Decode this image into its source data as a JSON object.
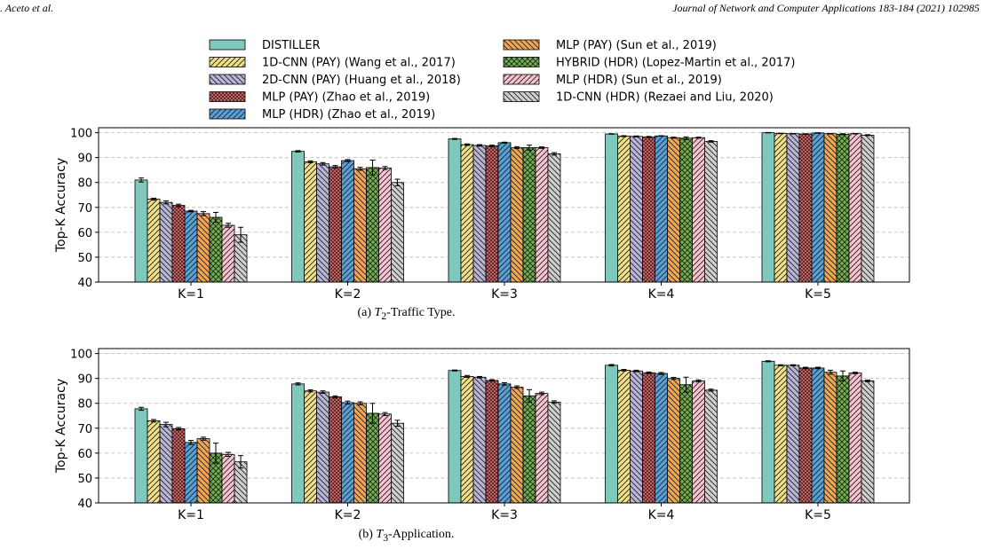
{
  "header": {
    "left": ". Aceto et al.",
    "right": "Journal of Network and Computer Applications 183-184 (2021) 102985"
  },
  "legend": [
    {
      "label": "DISTILLER",
      "color": "#7ec8be",
      "pattern": "none"
    },
    {
      "label": "1D-CNN (PAY) (Wang et al., 2017)",
      "color": "#f0e08a",
      "pattern": "diag"
    },
    {
      "label": "2D-CNN (PAY) (Huang et al., 2018)",
      "color": "#b9b5d6",
      "pattern": "diag-back"
    },
    {
      "label": "MLP (PAY) (Zhao et al., 2019)",
      "color": "#7a2323",
      "pattern": "dots"
    },
    {
      "label": "MLP (HDR) (Zhao et al., 2019)",
      "color": "#5aa0d8",
      "pattern": "diag"
    },
    {
      "label": "MLP (PAY) (Sun et al., 2019)",
      "color": "#f6a54a",
      "pattern": "diag-back"
    },
    {
      "label": "HYBRID (HDR) (Lopez-Martin et al., 2017)",
      "color": "#6fb24a",
      "pattern": "cross"
    },
    {
      "label": "MLP (HDR) (Sun et al., 2019)",
      "color": "#f7c3cf",
      "pattern": "diag"
    },
    {
      "label": "1D-CNN (HDR) (Rezaei and Liu, 2020)",
      "color": "#cfcfcf",
      "pattern": "diag-back"
    }
  ],
  "captions": {
    "a_prefix": "(a) ",
    "a_symbol": "T",
    "a_sub": "2",
    "a_text": "-Traffic Type.",
    "b_prefix": "(b) ",
    "b_symbol": "T",
    "b_sub": "3",
    "b_text": "-Application."
  },
  "chart_data": [
    {
      "type": "bar",
      "ylabel": "Top-K Accuracy",
      "ylim": [
        40,
        102
      ],
      "yticks": [
        40,
        50,
        60,
        70,
        80,
        90,
        100
      ],
      "grid": "horizontal dashed",
      "categories": [
        "K=1",
        "K=2",
        "K=3",
        "K=4",
        "K=5"
      ],
      "series": [
        {
          "name": "DISTILLER",
          "values": [
            81,
            92.5,
            97.5,
            99.5,
            100
          ],
          "err": [
            0.8,
            0.3,
            0.2,
            0.1,
            0.1
          ]
        },
        {
          "name": "1D-CNN (PAY) (Wang et al., 2017)",
          "values": [
            73.3,
            88.3,
            95.2,
            98.6,
            99.7
          ],
          "err": [
            0.4,
            0.4,
            0.3,
            0.2,
            0.1
          ]
        },
        {
          "name": "2D-CNN (PAY) (Huang et al., 2018)",
          "values": [
            72,
            87.5,
            94.9,
            98.5,
            99.6
          ],
          "err": [
            0.6,
            0.5,
            0.3,
            0.2,
            0.1
          ]
        },
        {
          "name": "MLP (PAY) (Zhao et al., 2019)",
          "values": [
            70.8,
            86.3,
            94.7,
            98.3,
            99.5
          ],
          "err": [
            0.5,
            0.5,
            0.3,
            0.2,
            0.1
          ]
        },
        {
          "name": "MLP (HDR) (Zhao et al., 2019)",
          "values": [
            68.5,
            88.8,
            96,
            98.7,
            99.9
          ],
          "err": [
            0.3,
            0.4,
            0.2,
            0.1,
            0.1
          ]
        },
        {
          "name": "MLP (PAY) (Sun et al., 2019)",
          "values": [
            67.5,
            85.5,
            94,
            98,
            99.6
          ],
          "err": [
            0.8,
            0.6,
            0.4,
            0.2,
            0.1
          ]
        },
        {
          "name": "HYBRID (HDR) (Lopez-Martin et al., 2017)",
          "values": [
            66,
            86,
            94,
            97.8,
            99.4
          ],
          "err": [
            2,
            3,
            1,
            0.5,
            0.2
          ]
        },
        {
          "name": "MLP (HDR) (Sun et al., 2019)",
          "values": [
            62.8,
            85.8,
            94,
            98,
            99.6
          ],
          "err": [
            0.8,
            0.6,
            0.3,
            0.2,
            0.1
          ]
        },
        {
          "name": "1D-CNN (HDR) (Rezaei and Liu, 2020)",
          "values": [
            59,
            80,
            91.5,
            96.5,
            99
          ],
          "err": [
            3,
            1.3,
            0.5,
            0.3,
            0.2
          ]
        }
      ]
    },
    {
      "type": "bar",
      "ylabel": "Top-K Accuracy",
      "ylim": [
        40,
        102
      ],
      "yticks": [
        40,
        50,
        60,
        70,
        80,
        90,
        100
      ],
      "grid": "horizontal dashed",
      "categories": [
        "K=1",
        "K=2",
        "K=3",
        "K=4",
        "K=5"
      ],
      "series": [
        {
          "name": "DISTILLER",
          "values": [
            77.8,
            87.8,
            93.2,
            95.3,
            96.9
          ],
          "err": [
            0.6,
            0.4,
            0.2,
            0.3,
            0.2
          ]
        },
        {
          "name": "1D-CNN (PAY) (Wang et al., 2017)",
          "values": [
            73,
            85,
            90.8,
            93.3,
            95.3
          ],
          "err": [
            0.5,
            0.4,
            0.4,
            0.3,
            0.2
          ]
        },
        {
          "name": "2D-CNN (PAY) (Huang et al., 2018)",
          "values": [
            71.5,
            84.5,
            90.5,
            93,
            95.3
          ],
          "err": [
            0.9,
            0.5,
            0.3,
            0.3,
            0.2
          ]
        },
        {
          "name": "MLP (PAY) (Zhao et al., 2019)",
          "values": [
            69.8,
            82.6,
            89.2,
            92.3,
            94.2
          ],
          "err": [
            0.5,
            0.4,
            0.3,
            0.3,
            0.3
          ]
        },
        {
          "name": "MLP (HDR) (Zhao et al., 2019)",
          "values": [
            64.3,
            80.3,
            87.8,
            92,
            94.2
          ],
          "err": [
            0.8,
            0.6,
            0.5,
            0.4,
            0.3
          ]
        },
        {
          "name": "MLP (PAY) (Sun et al., 2019)",
          "values": [
            65.8,
            80,
            86.5,
            90,
            92.5
          ],
          "err": [
            0.6,
            0.6,
            0.5,
            0.4,
            0.8
          ]
        },
        {
          "name": "HYBRID (HDR) (Lopez-Martin et al., 2017)",
          "values": [
            60,
            76,
            83,
            87.5,
            91
          ],
          "err": [
            4,
            4,
            2.5,
            3,
            2
          ]
        },
        {
          "name": "MLP (HDR) (Sun et al., 2019)",
          "values": [
            59.5,
            75.7,
            84,
            89,
            92.2
          ],
          "err": [
            0.8,
            0.6,
            0.5,
            0.4,
            0.3
          ]
        },
        {
          "name": "1D-CNN (HDR) (Rezaei and Liu, 2020)",
          "values": [
            56.5,
            72,
            80.5,
            85.3,
            89
          ],
          "err": [
            2.5,
            1.2,
            0.5,
            0.4,
            0.3
          ]
        }
      ]
    }
  ]
}
